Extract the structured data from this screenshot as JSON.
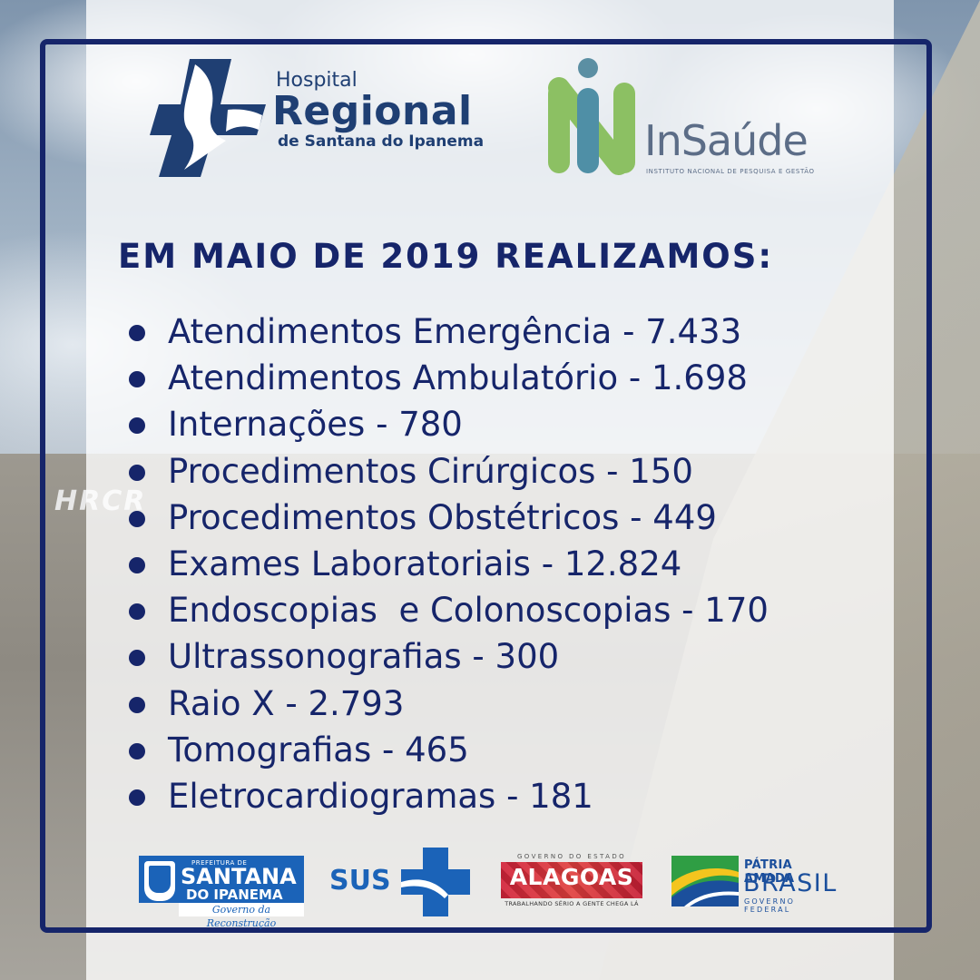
{
  "brand": {
    "hospital": {
      "line1": "Hospital",
      "line2": "Regional",
      "line3": "de Santana do Ipanema"
    },
    "insaude": {
      "name": "InSaúde",
      "tagline": "INSTITUTO NACIONAL DE PESQUISA E GESTÃO"
    }
  },
  "background": {
    "building_text": "HRCR"
  },
  "headline": "EM MAIO DE 2019 REALIZAMOS:",
  "stats": [
    {
      "text": "Atendimentos Emergência - 7.433"
    },
    {
      "text": "Atendimentos Ambulatório - 1.698"
    },
    {
      "text": "Internações - 780"
    },
    {
      "text": "Procedimentos Cirúrgicos - 150"
    },
    {
      "text": "Procedimentos Obstétricos - 449"
    },
    {
      "text": "Exames Laboratoriais - 12.824"
    },
    {
      "text": "Endoscopias  e Colonoscopias - 170"
    },
    {
      "text": "Ultrassonografias - 300"
    },
    {
      "text": "Raio X - 2.793"
    },
    {
      "text": "Tomografias - 465"
    },
    {
      "text": "Eletrocardiogramas - 181"
    }
  ],
  "footer": {
    "santana": {
      "prefeitura": "PREFEITURA DE",
      "name": "SANTANA",
      "city": "DO IPANEMA",
      "motto": "Governo da Reconstrução"
    },
    "sus": {
      "label": "SUS"
    },
    "alagoas": {
      "top": "GOVERNO DO ESTADO",
      "name": "ALAGOAS",
      "bottom": "TRABALHANDO SÉRIO A GENTE CHEGA LÁ"
    },
    "brasil": {
      "line1": "PÁTRIA AMADA",
      "line2": "BRASIL",
      "line3": "GOVERNO FEDERAL"
    }
  },
  "colors": {
    "primary_navy": "#16256a",
    "hospital_blue": "#1f3f73",
    "insaude_green": "#8cc063",
    "insaude_teal": "#4f8fa6",
    "sus_blue": "#1b63b8",
    "alagoas_red": "#d2233a",
    "brasil_green": "#2f9e44",
    "brasil_yellow": "#f4c51e"
  }
}
